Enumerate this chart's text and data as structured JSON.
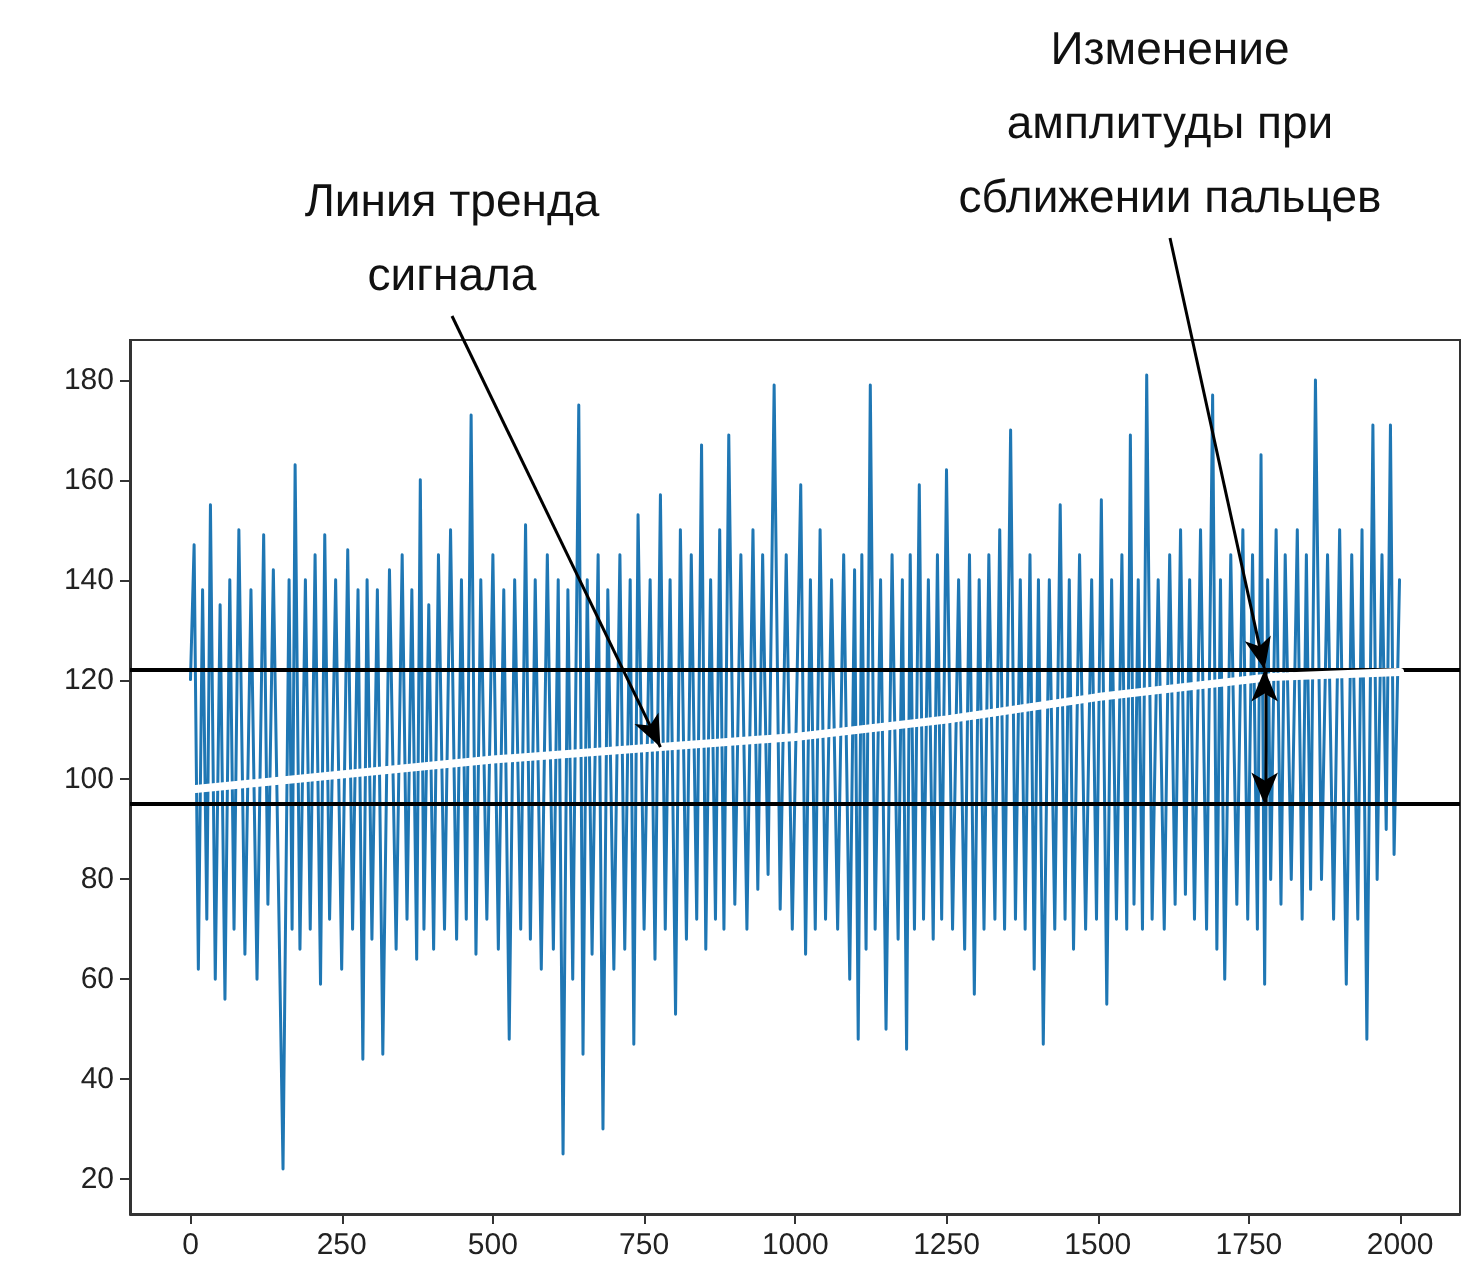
{
  "chart_data": {
    "type": "line",
    "xlim": [
      -100,
      2099
    ],
    "xticks": [
      0,
      250,
      500,
      750,
      1000,
      1250,
      1500,
      1750,
      2000
    ],
    "ylim": [
      13,
      188
    ],
    "yticks": [
      20,
      40,
      60,
      80,
      100,
      120,
      140,
      160,
      180
    ],
    "grid": false,
    "series": [
      {
        "color": "#1f77b4",
        "x": [
          0,
          6,
          13,
          20,
          27,
          33,
          41,
          49,
          57,
          65,
          72,
          80,
          90,
          100,
          110,
          121,
          128,
          137,
          153,
          163,
          168,
          173,
          181,
          190,
          198,
          206,
          215,
          222,
          230,
          240,
          250,
          260,
          268,
          277,
          285,
          292,
          300,
          309,
          318,
          329,
          340,
          350,
          358,
          366,
          374,
          380,
          386,
          394,
          402,
          410,
          420,
          430,
          440,
          448,
          456,
          464,
          472,
          480,
          490,
          500,
          509,
          518,
          527,
          536,
          546,
          554,
          562,
          570,
          580,
          590,
          600,
          608,
          616,
          624,
          632,
          642,
          649,
          656,
          664,
          674,
          682,
          690,
          700,
          710,
          718,
          727,
          733,
          740,
          750,
          760,
          768,
          777,
          785,
          793,
          802,
          810,
          820,
          828,
          837,
          845,
          852,
          860,
          868,
          875,
          882,
          890,
          900,
          910,
          920,
          930,
          938,
          946,
          955,
          965,
          975,
          985,
          995,
          1009,
          1017,
          1025,
          1033,
          1041,
          1050,
          1060,
          1070,
          1080,
          1090,
          1098,
          1104,
          1110,
          1117,
          1124,
          1132,
          1141,
          1150,
          1160,
          1170,
          1177,
          1184,
          1190,
          1197,
          1205,
          1212,
          1220,
          1228,
          1235,
          1242,
          1250,
          1260,
          1270,
          1280,
          1288,
          1296,
          1304,
          1312,
          1320,
          1330,
          1338,
          1346,
          1356,
          1364,
          1372,
          1380,
          1388,
          1395,
          1402,
          1410,
          1420,
          1429,
          1438,
          1446,
          1453,
          1460,
          1470,
          1480,
          1490,
          1498,
          1506,
          1515,
          1523,
          1531,
          1540,
          1548,
          1554,
          1560,
          1567,
          1574,
          1581,
          1590,
          1600,
          1610,
          1619,
          1628,
          1637,
          1645,
          1652,
          1660,
          1670,
          1680,
          1690,
          1697,
          1703,
          1710,
          1720,
          1730,
          1740,
          1748,
          1756,
          1764,
          1770,
          1776,
          1781,
          1786,
          1795,
          1803,
          1810,
          1820,
          1830,
          1838,
          1845,
          1852,
          1860,
          1870,
          1880,
          1890,
          1900,
          1911,
          1920,
          1930,
          1937,
          1945,
          1955,
          1962,
          1970,
          1977,
          1984,
          1990,
          1999
        ],
        "values": [
          120,
          147,
          62,
          138,
          72,
          155,
          60,
          135,
          56,
          140,
          70,
          150,
          65,
          138,
          60,
          149,
          75,
          142,
          22,
          140,
          70,
          163,
          66,
          140,
          70,
          145,
          59,
          149,
          72,
          140,
          62,
          146,
          70,
          138,
          44,
          140,
          68,
          138,
          45,
          142,
          66,
          145,
          72,
          138,
          64,
          160,
          70,
          135,
          66,
          145,
          70,
          150,
          68,
          140,
          72,
          173,
          65,
          140,
          72,
          145,
          66,
          138,
          48,
          140,
          70,
          151,
          68,
          140,
          62,
          145,
          66,
          140,
          25,
          138,
          60,
          175,
          45,
          140,
          65,
          145,
          30,
          138,
          62,
          145,
          66,
          140,
          47,
          153,
          70,
          140,
          64,
          157,
          70,
          140,
          53,
          150,
          68,
          145,
          72,
          167,
          66,
          140,
          72,
          150,
          70,
          169,
          75,
          145,
          70,
          150,
          78,
          145,
          81,
          179,
          74,
          145,
          70,
          159,
          65,
          140,
          70,
          150,
          72,
          140,
          70,
          145,
          60,
          142,
          48,
          145,
          66,
          179,
          70,
          140,
          50,
          145,
          68,
          140,
          46,
          145,
          70,
          159,
          72,
          140,
          68,
          145,
          72,
          162,
          70,
          140,
          66,
          145,
          57,
          140,
          70,
          145,
          72,
          150,
          70,
          170,
          72,
          140,
          70,
          145,
          62,
          140,
          47,
          140,
          70,
          155,
          72,
          140,
          66,
          145,
          70,
          140,
          72,
          156,
          55,
          140,
          72,
          145,
          70,
          169,
          75,
          140,
          70,
          181,
          72,
          140,
          70,
          145,
          75,
          150,
          77,
          140,
          72,
          150,
          70,
          177,
          66,
          140,
          60,
          145,
          75,
          150,
          72,
          145,
          70,
          165,
          59,
          140,
          80,
          150,
          75,
          145,
          80,
          150,
          72,
          145,
          78,
          180,
          80,
          145,
          72,
          150,
          59,
          145,
          72,
          150,
          48,
          171,
          80,
          145,
          90,
          171,
          85,
          140
        ]
      },
      {
        "color": "#ffffff",
        "x": [
          0,
          250,
          500,
          777,
          1000,
          1250,
          1500,
          1786,
          2000
        ],
        "values": [
          98,
          101,
          104,
          106.5,
          108.5,
          112,
          116.5,
          120.5,
          121.5
        ]
      }
    ],
    "ref_lines": [
      {
        "axis": "y",
        "value": 122,
        "color": "#000000"
      },
      {
        "axis": "y",
        "value": 95,
        "color": "#000000"
      }
    ],
    "annotations": [
      {
        "text": "Линия тренда сигнала",
        "x": 777,
        "y": 106.5
      },
      {
        "text": "Изменение амплитуды при сближении пальцев",
        "x": 1776,
        "y": 122
      }
    ]
  }
}
